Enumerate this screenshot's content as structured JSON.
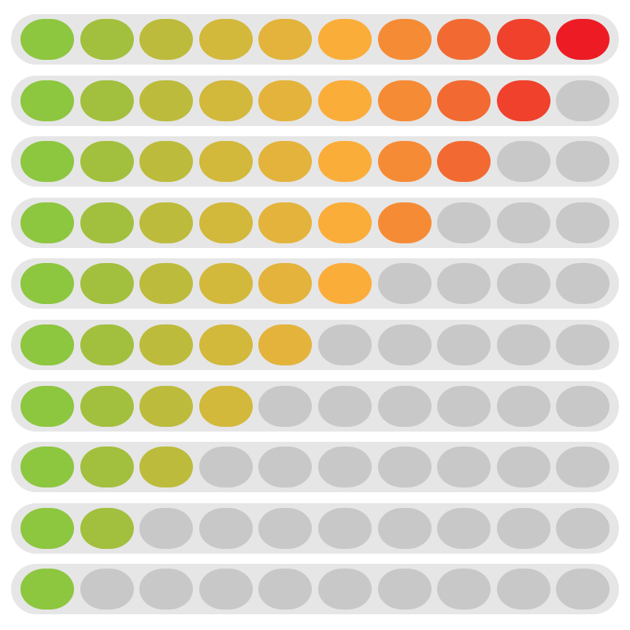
{
  "segment_count": 10,
  "colors": {
    "track": "#e6e6e6",
    "empty_segment": "#c8c8c8",
    "segments": [
      "#8dc63f",
      "#a3bf3e",
      "#bcbb3c",
      "#d2b83b",
      "#e3b33c",
      "#fbad3a",
      "#f68b36",
      "#f26a32",
      "#ef412c",
      "#ed1c24"
    ]
  },
  "bars": [
    {
      "level": 10
    },
    {
      "level": 9
    },
    {
      "level": 8
    },
    {
      "level": 7
    },
    {
      "level": 6
    },
    {
      "level": 5
    },
    {
      "level": 4
    },
    {
      "level": 3
    },
    {
      "level": 2
    },
    {
      "level": 1
    }
  ]
}
